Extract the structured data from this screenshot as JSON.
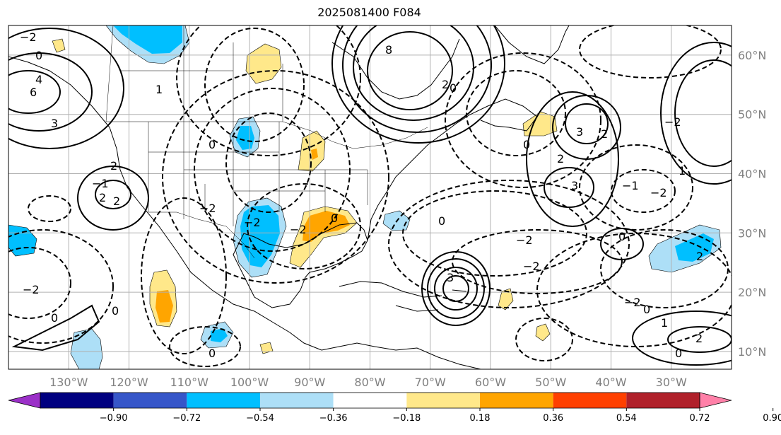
{
  "title": "2025081400 F084",
  "map": {
    "lon_min": -140,
    "lon_max": -20,
    "lat_min": 7,
    "lat_max": 65,
    "lat_ticks": [
      {
        "value": 60,
        "label": "60°N"
      },
      {
        "value": 50,
        "label": "50°N"
      },
      {
        "value": 40,
        "label": "40°N"
      },
      {
        "value": 30,
        "label": "30°N"
      },
      {
        "value": 20,
        "label": "20°N"
      },
      {
        "value": 10,
        "label": "10°N"
      }
    ],
    "lon_ticks": [
      {
        "value": -130,
        "label": "130°W"
      },
      {
        "value": -120,
        "label": "120°W"
      },
      {
        "value": -110,
        "label": "110°W"
      },
      {
        "value": -100,
        "label": "100°W"
      },
      {
        "value": -90,
        "label": "90°W"
      },
      {
        "value": -80,
        "label": "80°W"
      },
      {
        "value": -70,
        "label": "70°W"
      },
      {
        "value": -60,
        "label": "60°W"
      },
      {
        "value": -50,
        "label": "50°W"
      },
      {
        "value": -40,
        "label": "40°W"
      },
      {
        "value": -30,
        "label": "30°W"
      }
    ],
    "grid_color": "#b0b0b0",
    "label_color": "#808080"
  },
  "colorbar": {
    "levels": [
      "−0.90",
      "−0.72",
      "−0.54",
      "−0.36",
      "−0.18",
      "0.18",
      "0.36",
      "0.54",
      "0.72",
      "0.90"
    ],
    "colors": [
      "#9b30c8",
      "#000080",
      "#3656c9",
      "#00bfff",
      "#addff7",
      "#ffffff",
      "#ffe88a",
      "#ffa500",
      "#ff4000",
      "#b0202a",
      "#ff80a8"
    ]
  },
  "shaded_regions": [
    {
      "name": "negative-nw-canada",
      "color": "#00bfff",
      "outer": "#addff7"
    },
    {
      "name": "negative-texas",
      "color": "#00bfff",
      "outer": "#addff7"
    },
    {
      "name": "negative-minnesota",
      "color": "#00bfff",
      "outer": "#addff7"
    },
    {
      "name": "negative-east-atlantic",
      "color": "#00bfff",
      "outer": "#addff7"
    },
    {
      "name": "positive-gulf-coast",
      "color": "#ffa500",
      "outer": "#ffe88a"
    },
    {
      "name": "positive-mexico-pacific",
      "color": "#ffa500",
      "outer": "#ffe88a"
    },
    {
      "name": "positive-lake-michigan",
      "color": "#ffa500",
      "outer": "#ffe88a"
    },
    {
      "name": "positive-montana",
      "color": "#ffe88a",
      "outer": "#ffe88a"
    },
    {
      "name": "positive-newfoundland",
      "color": "#ffe88a",
      "outer": "#ffe88a"
    }
  ],
  "contour_labels": [
    "0",
    "−2",
    "2",
    "3",
    "6",
    "4",
    "8",
    "1",
    "−1",
    "0",
    "−2",
    "2",
    "3",
    "−2",
    "0",
    "2",
    "−2",
    "3",
    "2",
    "−2",
    "2",
    "0",
    "0",
    "3",
    "−2",
    "0",
    "0",
    "2",
    "−2",
    "1",
    "2",
    "0",
    "−2",
    "−2",
    "0",
    "1",
    "0",
    "−1",
    "0",
    "−2",
    "2",
    "0"
  ]
}
